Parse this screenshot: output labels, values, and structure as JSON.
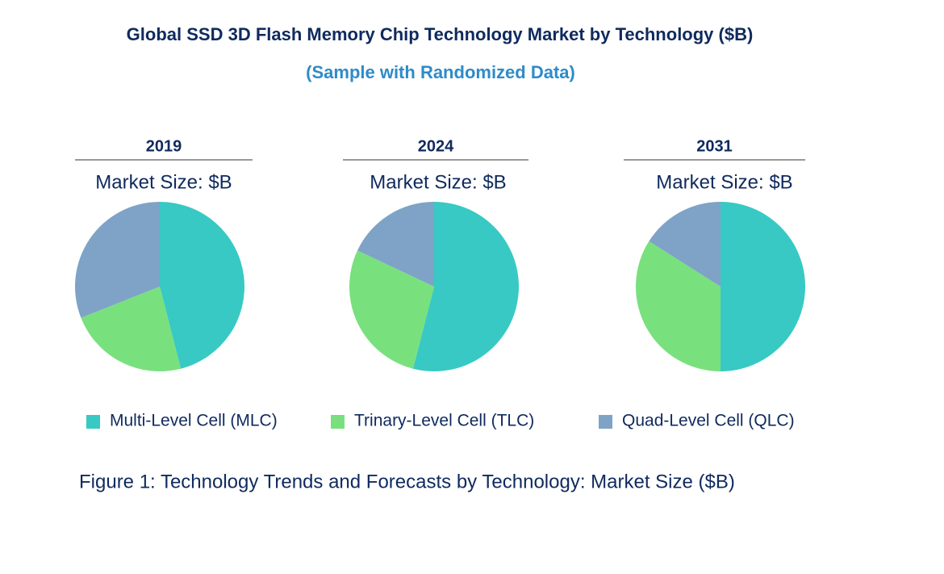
{
  "title": "Global SSD 3D Flash Memory Chip Technology Market by Technology ($B)",
  "subtitle": "(Sample with Randomized Data)",
  "caption": "Figure 1: Technology Trends and Forecasts by Technology: Market Size ($B)",
  "chart_data": [
    {
      "type": "pie",
      "title": "2019",
      "subtitle": "Market Size: $B",
      "categories": [
        "Multi-Level Cell (MLC)",
        "Trinary-Level Cell (TLC)",
        "Quad-Level Cell (QLC)"
      ],
      "values": [
        46,
        23,
        31
      ],
      "colors": [
        "#38c9c4",
        "#79e07e",
        "#7ea3c6"
      ]
    },
    {
      "type": "pie",
      "title": "2024",
      "subtitle": "Market Size: $B",
      "categories": [
        "Multi-Level Cell (MLC)",
        "Trinary-Level Cell (TLC)",
        "Quad-Level Cell (QLC)"
      ],
      "values": [
        54,
        28,
        18
      ],
      "colors": [
        "#38c9c4",
        "#79e07e",
        "#7ea3c6"
      ]
    },
    {
      "type": "pie",
      "title": "2031",
      "subtitle": "Market Size: $B",
      "categories": [
        "Multi-Level Cell (MLC)",
        "Trinary-Level Cell (TLC)",
        "Quad-Level Cell (QLC)"
      ],
      "values": [
        50,
        34,
        16
      ],
      "colors": [
        "#38c9c4",
        "#79e07e",
        "#7ea3c6"
      ]
    }
  ]
}
